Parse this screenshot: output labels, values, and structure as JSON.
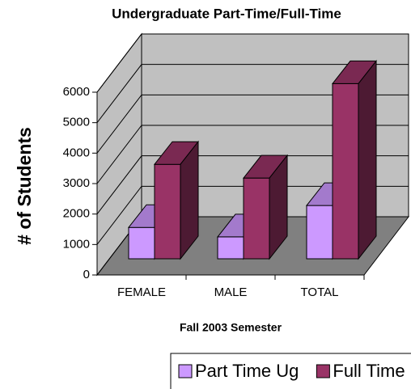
{
  "chart_data": {
    "type": "bar3d",
    "title": "Undergraduate Part-Time/Full-Time",
    "x_label": "Fall 2003 Semester",
    "y_label": "# of Students",
    "categories": [
      "FEMALE",
      "MALE",
      "TOTAL"
    ],
    "series": [
      {
        "name": "Part Time Ug",
        "color": "#cc99ff",
        "values": [
          1030,
          720,
          1750
        ]
      },
      {
        "name": "Full Time Ug",
        "color": "#993366",
        "values": [
          3100,
          2650,
          5750
        ]
      }
    ],
    "ylim": [
      0,
      6000
    ],
    "yticks": [
      0,
      1000,
      2000,
      3000,
      4000,
      5000,
      6000
    ],
    "grid": true,
    "legend": "bottom"
  }
}
